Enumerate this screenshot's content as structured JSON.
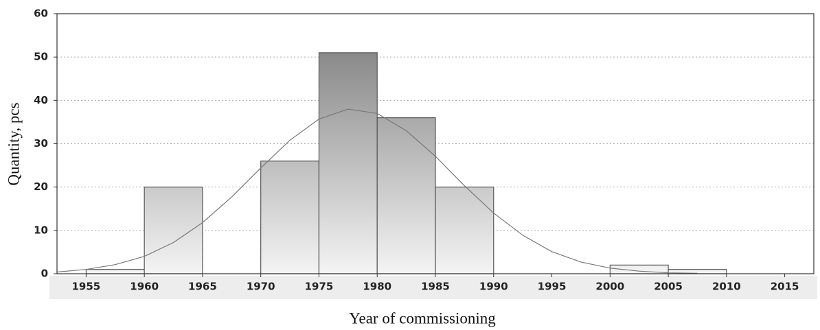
{
  "chart_data": {
    "type": "histogram",
    "x_label": "Year of commissioning",
    "y_label": "Quantity, pcs",
    "bins": [
      1955,
      1960,
      1965,
      1970,
      1975,
      1980,
      1985,
      1990,
      1995,
      2000,
      2005,
      2010
    ],
    "counts": [
      1,
      20,
      0,
      26,
      51,
      36,
      20,
      0,
      0,
      2,
      1
    ],
    "gradient": [
      "#777777",
      "#f4f4f4"
    ],
    "edge_color": "#555555",
    "curve": {
      "color": "#777777",
      "x": [
        1952.5,
        1955,
        1957.5,
        1960,
        1962.5,
        1965,
        1967.5,
        1970,
        1972.5,
        1975,
        1977.5,
        1980,
        1982.5,
        1985,
        1987.5,
        1990,
        1992.5,
        1995,
        1997.5,
        2000,
        2002.5,
        2005,
        2007.5
      ],
      "values": [
        0.4,
        1.0,
        2.1,
        4.0,
        7.2,
        11.8,
        17.7,
        24.4,
        30.8,
        35.7,
        38.0,
        37.0,
        33.0,
        27.1,
        20.3,
        14.0,
        8.9,
        5.1,
        2.7,
        1.3,
        0.6,
        0.2,
        0.1
      ]
    },
    "xlim": [
      1952.5,
      2017.5
    ],
    "xticks": [
      1955,
      1960,
      1965,
      1970,
      1975,
      1980,
      1985,
      1990,
      1995,
      2000,
      2005,
      2010,
      2015
    ],
    "ylim": [
      0,
      60
    ],
    "yticks": [
      0,
      10,
      20,
      30,
      40,
      50,
      60
    ],
    "grid": true
  }
}
